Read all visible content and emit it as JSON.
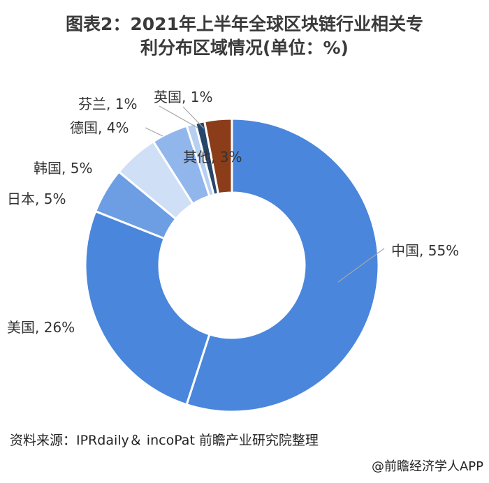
{
  "title_line1": "图表2：2021年上半年全球区块链行业相关专",
  "title_line2": "利分布区域情况(单位：%)",
  "source": "资料来源：IPRdaily＆ incoPat 前瞻产业研究院整理",
  "credit": "@前瞻经济学人APP",
  "chart_data": {
    "type": "pie",
    "title": "图表2：2021年上半年全球区块链行业相关专利分布区域情况(单位：%)",
    "unit": "%",
    "labels": [
      "中国",
      "美国",
      "日本",
      "韩国",
      "德国",
      "芬兰",
      "英国",
      "其他"
    ],
    "values": [
      55,
      26,
      5,
      5,
      4,
      1,
      1,
      3
    ],
    "colors": [
      "#4a86dc",
      "#4a86dc",
      "#6d9ee4",
      "#cfe0f6",
      "#90b6ec",
      "#b7cff0",
      "#27466c",
      "#8a3d18"
    ],
    "data_labels": [
      "中国, 55%",
      "美国, 26%",
      "日本, 5%",
      "韩国, 5%",
      "德国, 4%",
      "芬兰, 1%",
      "英国, 1%",
      "其他, 3%"
    ]
  }
}
